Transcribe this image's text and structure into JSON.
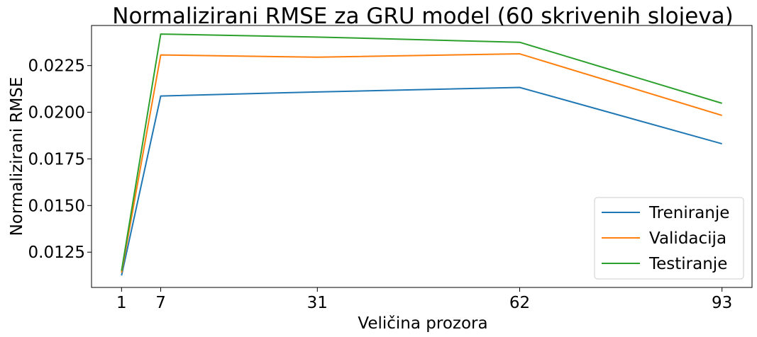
{
  "chart_data": {
    "type": "line",
    "title": "Normalizirani RMSE za GRU model (60 skrivenih slojeva)",
    "xlabel": "Veličina prozora",
    "ylabel": "Normalizirani RMSE",
    "x": [
      1,
      7,
      31,
      62,
      93
    ],
    "xticks": [
      "1",
      "7",
      "31",
      "62",
      "93"
    ],
    "yticks": [
      "0.0125",
      "0.0150",
      "0.0175",
      "0.0200",
      "0.0225"
    ],
    "ytick_values": [
      0.0125,
      0.015,
      0.0175,
      0.02,
      0.0225
    ],
    "xlim": [
      -3.6,
      97.6
    ],
    "ylim": [
      0.01061,
      0.02465
    ],
    "legend_position": "lower-right",
    "grid": false,
    "series": [
      {
        "name": "Treniranje",
        "color": "#1f77b4",
        "values": [
          0.01125,
          0.02087,
          0.02109,
          0.02133,
          0.01831
        ]
      },
      {
        "name": "Validacija",
        "color": "#ff7f0e",
        "values": [
          0.0114,
          0.02307,
          0.02295,
          0.02313,
          0.01983
        ]
      },
      {
        "name": "Testiranje",
        "color": "#2ca02c",
        "values": [
          0.0115,
          0.02419,
          0.02403,
          0.02375,
          0.02048
        ]
      }
    ]
  }
}
